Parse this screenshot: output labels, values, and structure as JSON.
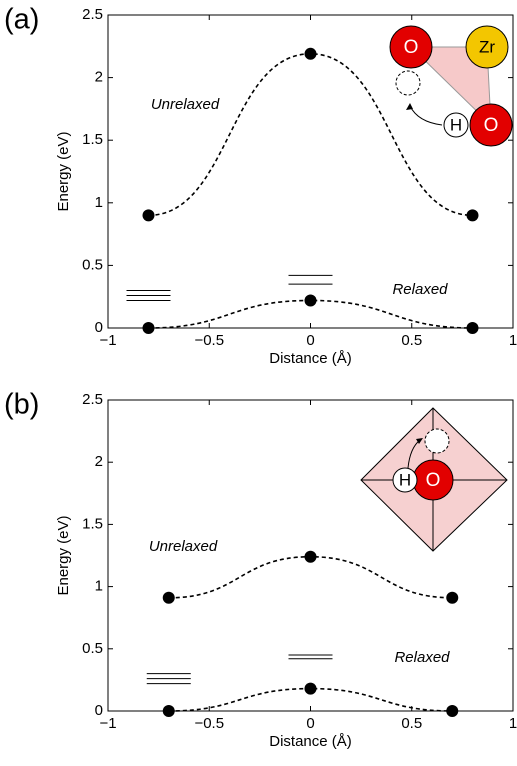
{
  "chart_data": [
    {
      "type": "line",
      "panel_label": "(a)",
      "xlabel": "Distance (Å)",
      "ylabel": "Energy (eV)",
      "xlim": [
        -1,
        1
      ],
      "ylim": [
        0,
        2.5
      ],
      "xticks": [
        {
          "value": -1,
          "label": "−1"
        },
        {
          "value": -0.5,
          "label": "−0.5"
        },
        0,
        0.5,
        1
      ],
      "yticks": [
        0,
        0.5,
        1,
        1.5,
        2,
        2.5
      ],
      "series": [
        {
          "name": "Unrelaxed",
          "color": "#000000",
          "x": [
            -0.8,
            0,
            0.8
          ],
          "values": [
            0.9,
            2.19,
            0.9
          ]
        },
        {
          "name": "Relaxed",
          "color": "#000000",
          "x": [
            -0.8,
            0,
            0.8
          ],
          "values": [
            0,
            0.22,
            0
          ]
        }
      ],
      "levels": [
        {
          "x": -0.8,
          "values": [
            0.3,
            0.26,
            0.22
          ]
        },
        {
          "x": 0,
          "values": [
            0.42,
            0.35
          ]
        }
      ],
      "inset": {
        "atoms": [
          "O",
          "Zr",
          "H",
          "O"
        ]
      }
    },
    {
      "type": "line",
      "panel_label": "(b)",
      "xlabel": "Distance (Å)",
      "ylabel": "Energy (eV)",
      "xlim": [
        -1,
        1
      ],
      "ylim": [
        0,
        2.5
      ],
      "xticks": [
        {
          "value": -1,
          "label": "−1"
        },
        {
          "value": -0.5,
          "label": "−0.5"
        },
        0,
        0.5,
        1
      ],
      "yticks": [
        0,
        0.5,
        1,
        1.5,
        2,
        2.5
      ],
      "series": [
        {
          "name": "Unrelaxed",
          "color": "#000000",
          "x": [
            -0.7,
            0,
            0.7
          ],
          "values": [
            0.91,
            1.24,
            0.91
          ]
        },
        {
          "name": "Relaxed",
          "color": "#000000",
          "x": [
            -0.7,
            0,
            0.7
          ],
          "values": [
            0,
            0.18,
            0
          ]
        }
      ],
      "levels": [
        {
          "x": -0.7,
          "values": [
            0.3,
            0.26,
            0.22
          ]
        },
        {
          "x": 0,
          "values": [
            0.45,
            0.42
          ]
        }
      ],
      "inset": {
        "atoms": [
          "H",
          "O"
        ]
      }
    }
  ]
}
